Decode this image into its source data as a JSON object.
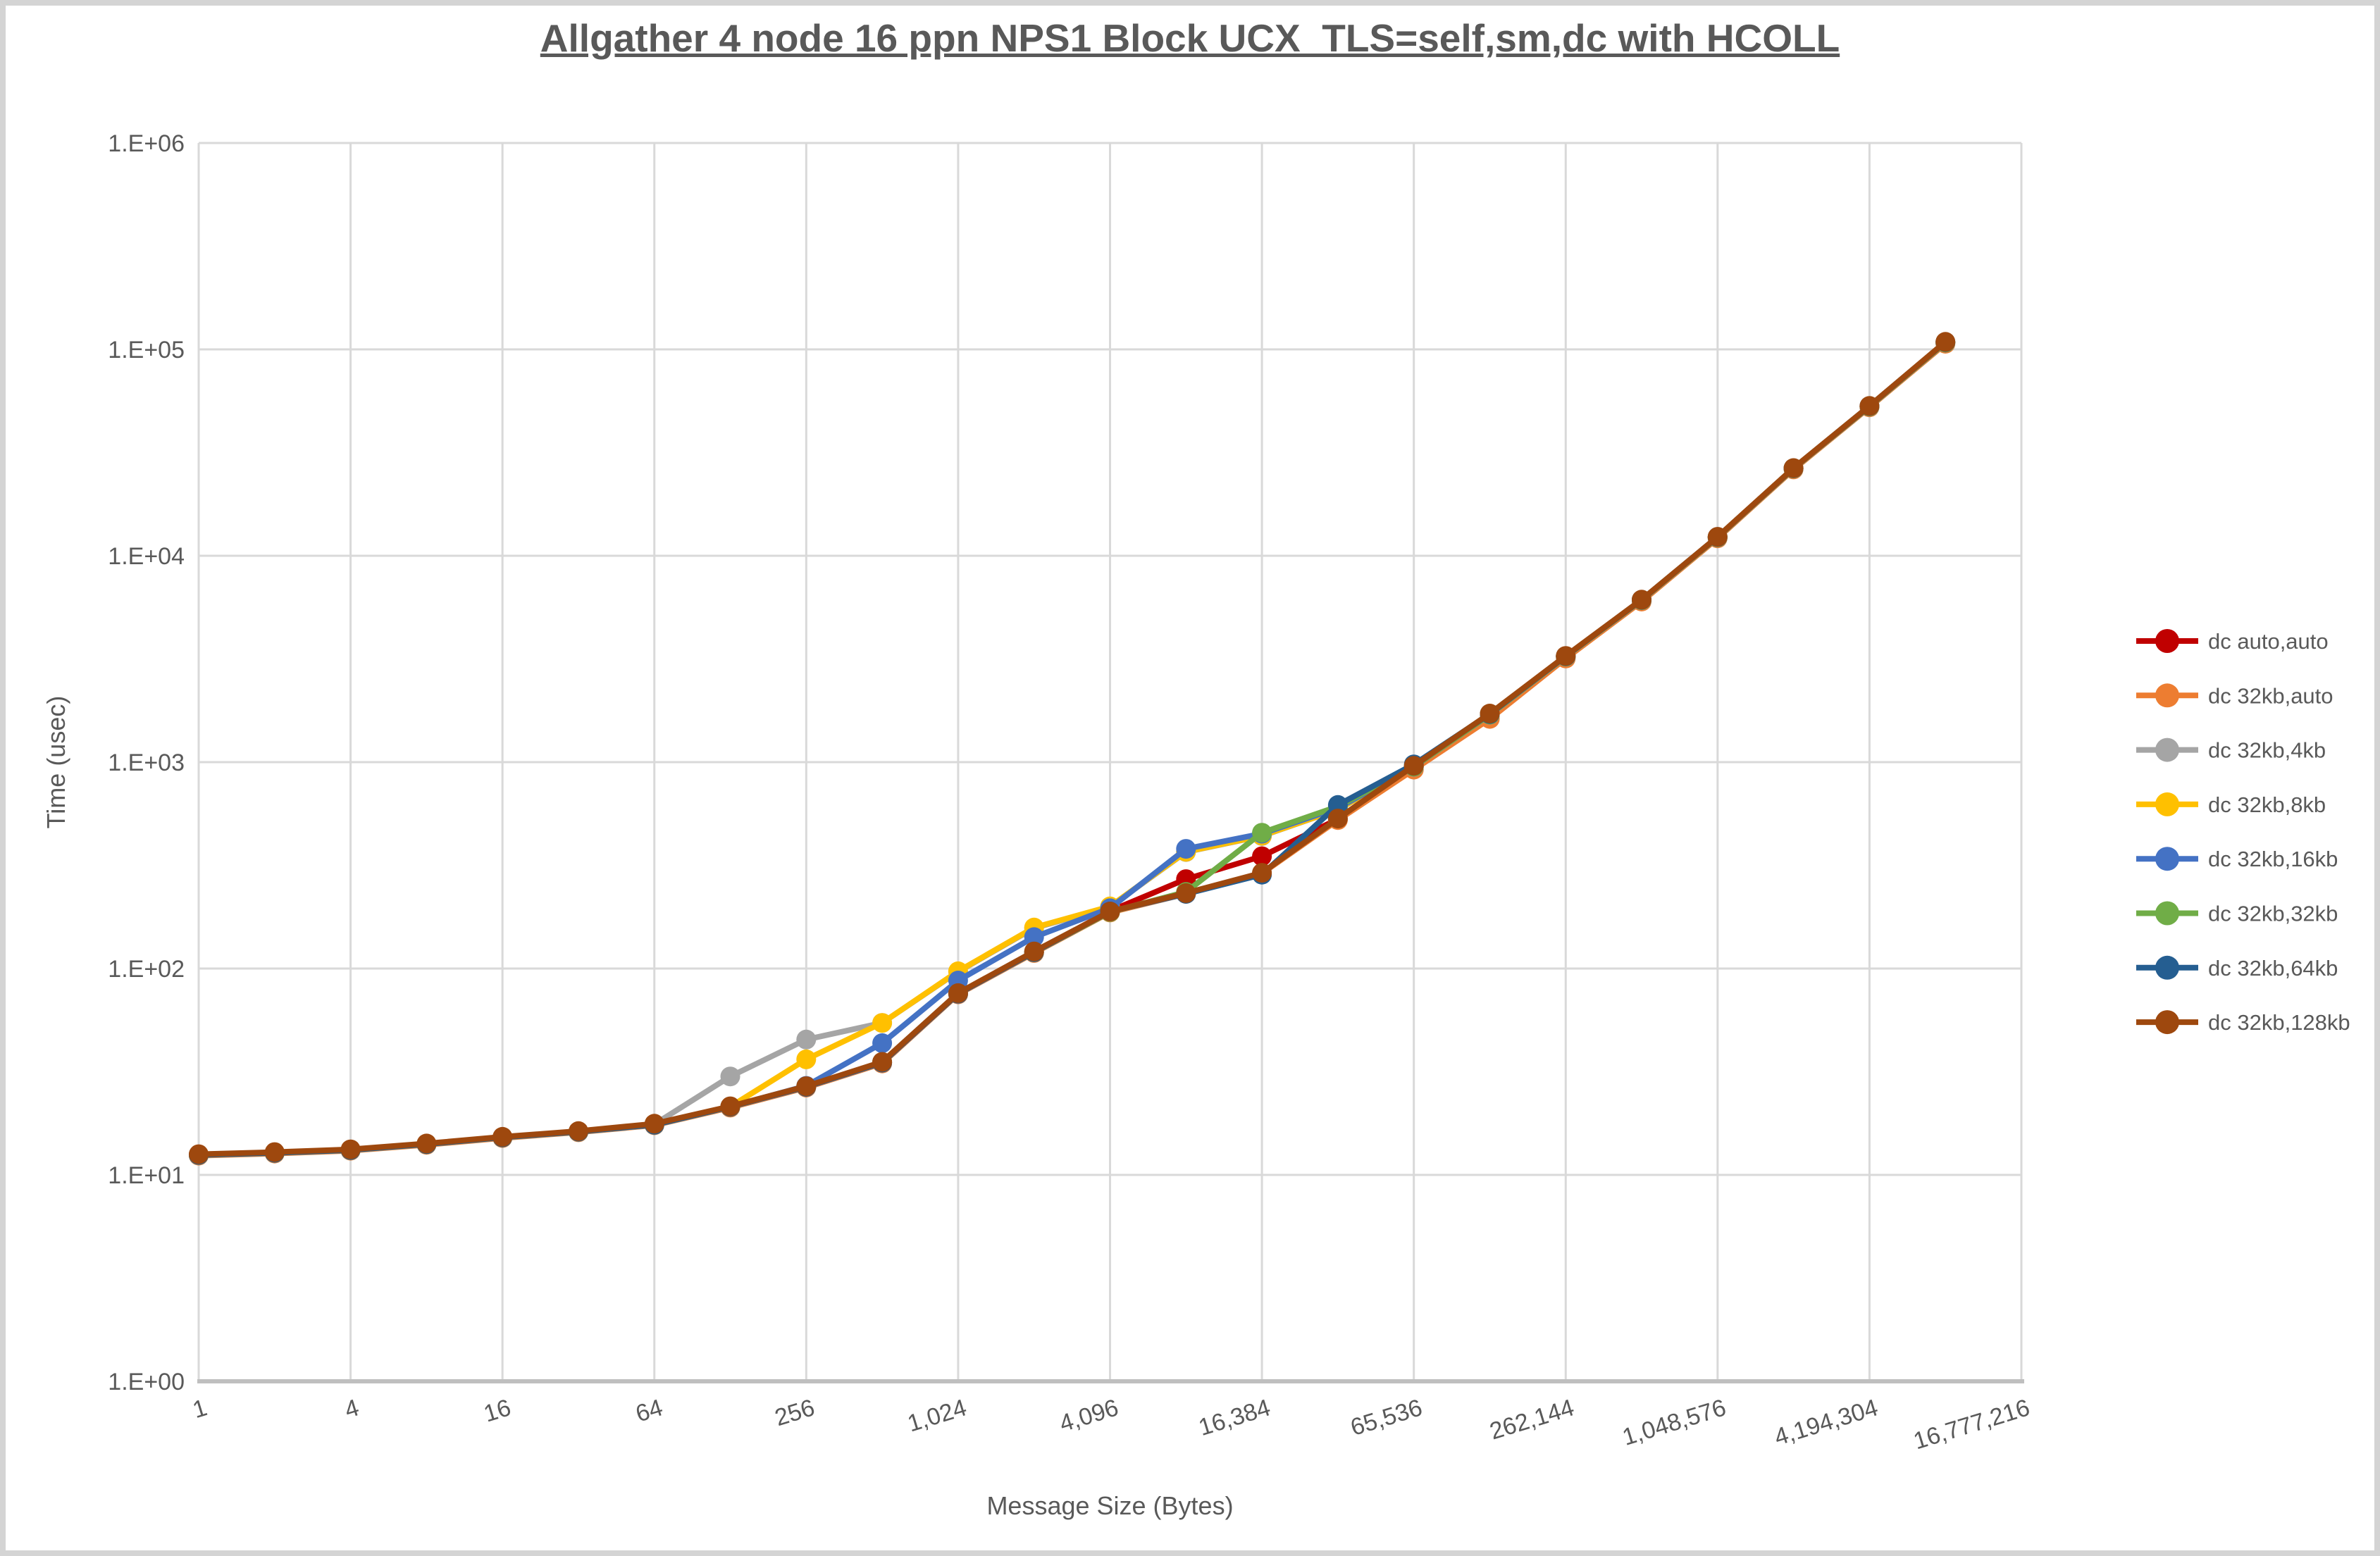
{
  "window": {
    "background_color": "#ffffff",
    "frame_color": "#d4d4d4"
  },
  "chart_data": {
    "type": "line",
    "title": "Allgather 4 node 16 ppn NPS1 Block UCX_TLS=self,sm,dc with HCOLL",
    "xlabel": "Message Size (Bytes)",
    "ylabel": "Time (usec)",
    "x_scale": "log2",
    "y_scale": "log10",
    "xlim": [
      1,
      16777216
    ],
    "ylim": [
      1,
      1000000
    ],
    "grid": true,
    "legend_position": "right",
    "x_tick_labels": [
      "1",
      "4",
      "16",
      "64",
      "256",
      "1,024",
      "4,096",
      "16,384",
      "65,536",
      "262,144",
      "1,048,576",
      "4,194,304",
      "16,777,216"
    ],
    "y_tick_labels": [
      "1.E+00",
      "1.E+01",
      "1.E+02",
      "1.E+03",
      "1.E+04",
      "1.E+05",
      "1.E+06"
    ],
    "axis_text_color": "#595959",
    "gridline_color": "#d9d9d9",
    "axis_line_color": "#bfbfbf",
    "x": [
      1,
      2,
      4,
      8,
      16,
      32,
      64,
      128,
      256,
      512,
      1024,
      2048,
      4096,
      8192,
      16384,
      32768,
      65536,
      131072,
      262144,
      524288,
      1048576,
      2097152,
      4194304,
      8388608
    ],
    "series": [
      {
        "name": "dc auto,auto",
        "color": "#C00000",
        "values": [
          12.5,
          12.8,
          13.2,
          14.1,
          15.2,
          16.2,
          17.5,
          21.4,
          26.7,
          35,
          75.5,
          120,
          190,
          271,
          350,
          530,
          950,
          1700,
          3250,
          6100,
          12300,
          26500,
          52900,
          108000
        ]
      },
      {
        "name": "dc 32kb,auto",
        "color": "#ED7D31",
        "values": [
          12.4,
          12.7,
          13.1,
          14.0,
          15.1,
          16.1,
          17.4,
          21.2,
          26.5,
          34.7,
          75,
          119,
          187,
          230,
          289,
          524,
          920,
          1620,
          3180,
          6000,
          12150,
          26200,
          52400,
          106500
        ]
      },
      {
        "name": "dc 32kb,4kb",
        "color": "#A5A5A5",
        "values": [
          12.5,
          12.8,
          13.2,
          14.1,
          15.2,
          16.2,
          17.6,
          30,
          45.3,
          54.5,
          96.5,
          157,
          199,
          367,
          439,
          589,
          950,
          1700,
          3250,
          6100,
          12300,
          26500,
          52900,
          108000
        ]
      },
      {
        "name": "dc 32kb,8kb",
        "color": "#FFC000",
        "values": [
          12.5,
          12.8,
          13.2,
          14.1,
          15.2,
          16.2,
          17.6,
          21.4,
          36.3,
          54.5,
          97,
          158,
          200,
          368,
          440,
          590,
          955,
          1705,
          3255,
          6110,
          12320,
          26550,
          53000,
          108200
        ]
      },
      {
        "name": "dc 32kb,16kb",
        "color": "#4472C4",
        "values": [
          12.5,
          12.8,
          13.2,
          14.1,
          15.2,
          16.2,
          17.5,
          21.4,
          27,
          43.5,
          87.5,
          142,
          196,
          380,
          450,
          600,
          950,
          1700,
          3250,
          6100,
          12300,
          26500,
          52900,
          108000
        ]
      },
      {
        "name": "dc 32kb,32kb",
        "color": "#70AD47",
        "values": [
          12.5,
          12.8,
          13.2,
          14.1,
          15.2,
          16.2,
          17.5,
          21.4,
          26.8,
          35.2,
          75.8,
          120,
          188,
          235,
          455,
          610,
          952,
          1700,
          3250,
          6100,
          12300,
          26500,
          52900,
          108000
        ]
      },
      {
        "name": "dc 32kb,64kb",
        "color": "#255E91",
        "values": [
          12.5,
          12.8,
          13.2,
          14.1,
          15.2,
          16.2,
          17.5,
          21.4,
          26.7,
          35,
          75.5,
          120,
          189,
          230,
          285,
          620,
          975,
          1710,
          3260,
          6120,
          12330,
          26570,
          53100,
          108500
        ]
      },
      {
        "name": "dc 32kb,128kb",
        "color": "#9E480E",
        "values": [
          12.6,
          12.9,
          13.3,
          14.2,
          15.3,
          16.3,
          17.7,
          21.5,
          26.9,
          35.3,
          76,
          121,
          189,
          232,
          291,
          533,
          960,
          1720,
          3270,
          6130,
          12350,
          26600,
          53200,
          108800
        ]
      }
    ]
  }
}
